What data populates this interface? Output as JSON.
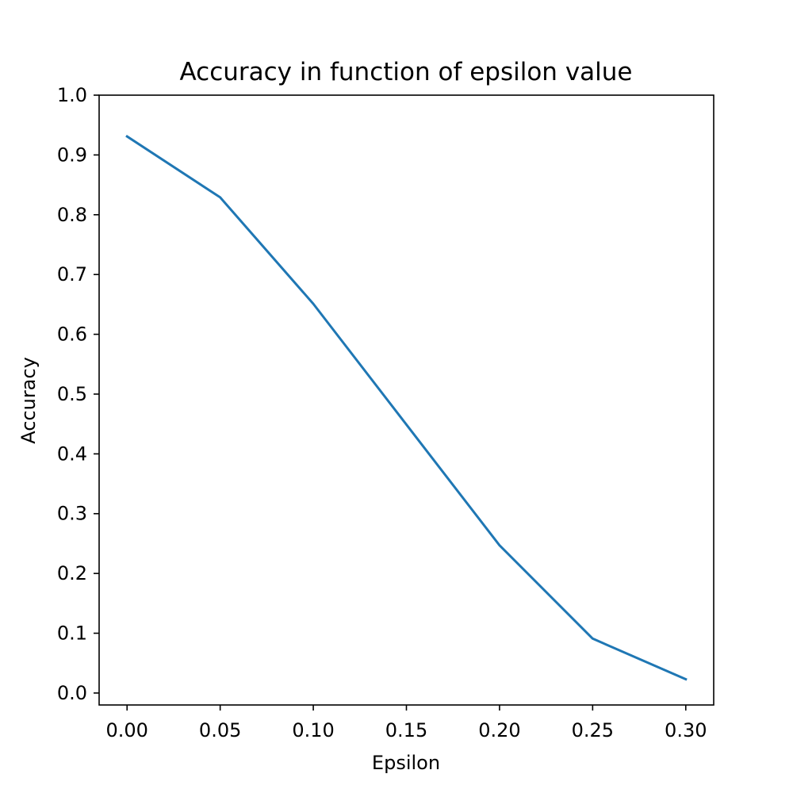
{
  "chart_data": {
    "type": "line",
    "title": "Accuracy in function of epsilon value",
    "xlabel": "Epsilon",
    "ylabel": "Accuracy",
    "xlim": [
      -0.015,
      0.315
    ],
    "ylim": [
      -0.02,
      1.0
    ],
    "grid": false,
    "legend": "none",
    "x_ticks": [
      0.0,
      0.05,
      0.1,
      0.15,
      0.2,
      0.25,
      0.3
    ],
    "x_tick_labels": [
      "0.00",
      "0.05",
      "0.10",
      "0.15",
      "0.20",
      "0.25",
      "0.30"
    ],
    "y_ticks": [
      0.0,
      0.1,
      0.2,
      0.3,
      0.4,
      0.5,
      0.6,
      0.7,
      0.8,
      0.9,
      1.0
    ],
    "y_tick_labels": [
      "0.0",
      "0.1",
      "0.2",
      "0.3",
      "0.4",
      "0.5",
      "0.6",
      "0.7",
      "0.8",
      "0.9",
      "1.0"
    ],
    "series": [
      {
        "color": "#1f77b4",
        "x": [
          0.0,
          0.05,
          0.1,
          0.15,
          0.2,
          0.25,
          0.3
        ],
        "y": [
          0.931,
          0.829,
          0.651,
          0.449,
          0.247,
          0.091,
          0.023
        ]
      }
    ]
  }
}
